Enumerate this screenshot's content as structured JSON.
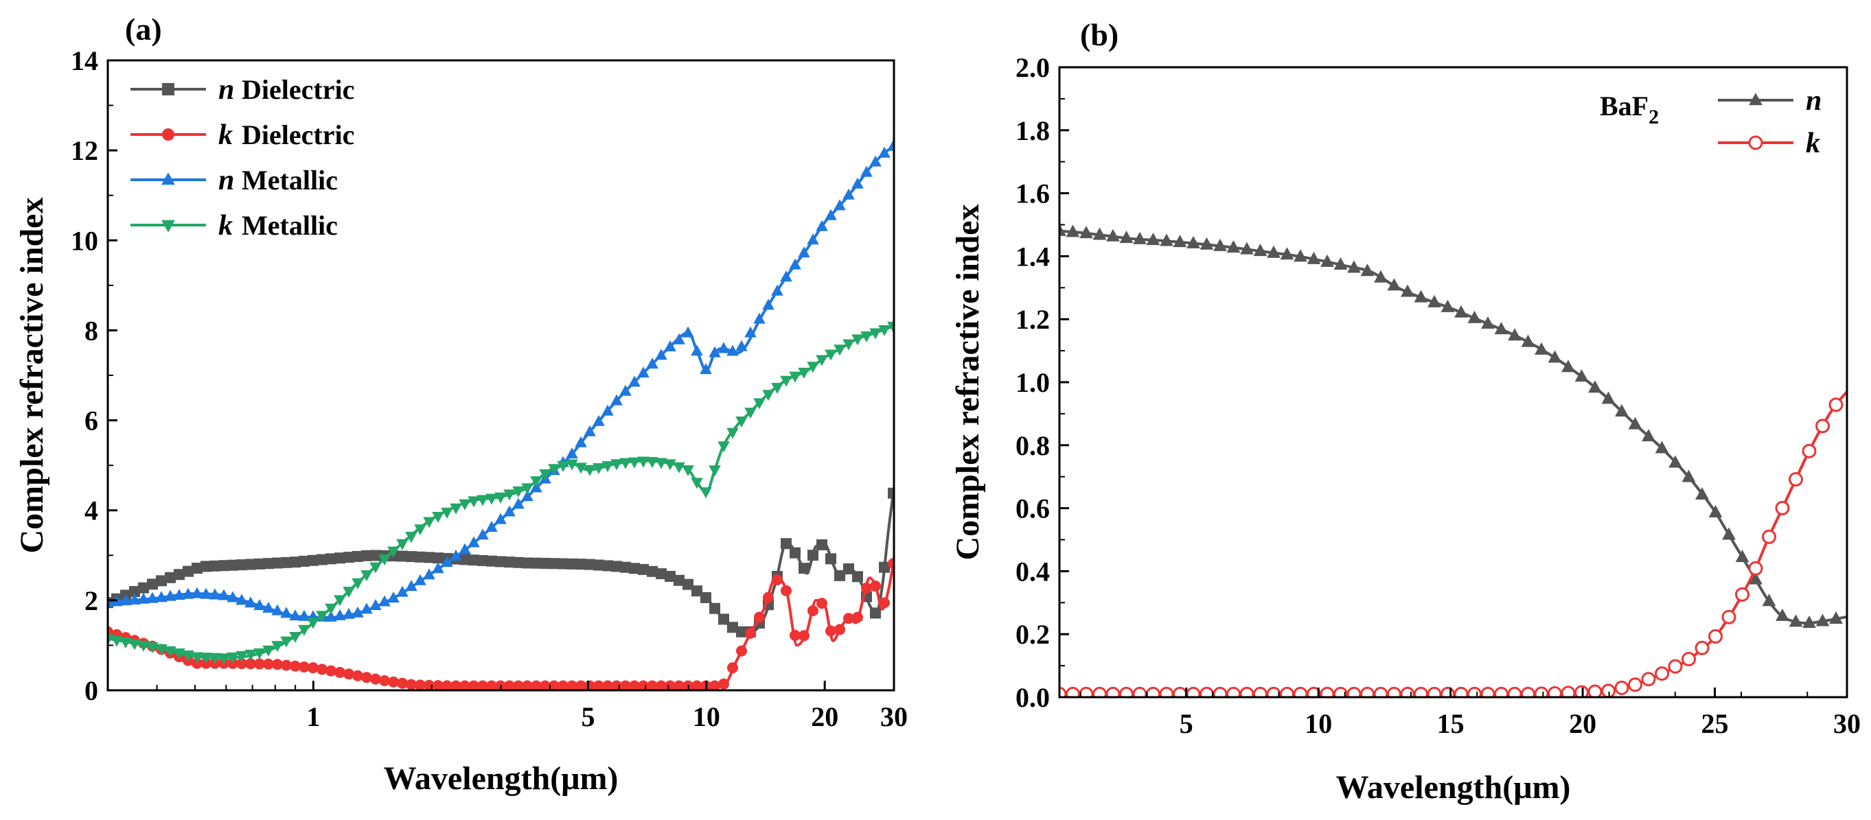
{
  "chart_data": [
    {
      "type": "line",
      "panel_label": "(a)",
      "xlabel": "Wavelength(μm)",
      "ylabel": "Complex refractive index",
      "xscale": "log",
      "xlim": [
        0.3,
        30
      ],
      "ylim": [
        0,
        14
      ],
      "xticks": [
        {
          "value": 1,
          "label": "1"
        },
        {
          "value": 5,
          "label": "5"
        },
        {
          "value": 10,
          "label": "10"
        },
        {
          "value": 20,
          "label": "20"
        },
        {
          "value": 30,
          "label": "30"
        }
      ],
      "yticks": [
        {
          "value": 0,
          "label": "0"
        },
        {
          "value": 2,
          "label": "2"
        },
        {
          "value": 4,
          "label": "4"
        },
        {
          "value": 6,
          "label": "6"
        },
        {
          "value": 8,
          "label": "8"
        },
        {
          "value": 10,
          "label": "10"
        },
        {
          "value": 12,
          "label": "12"
        },
        {
          "value": 14,
          "label": "14"
        }
      ],
      "legend_position": "top-left",
      "series": [
        {
          "symbol": "n",
          "name": "Dielectric",
          "color": "#555555",
          "marker": "square",
          "points": [
            [
              0.3,
              1.95
            ],
            [
              0.4,
              2.4
            ],
            [
              0.52,
              2.75
            ],
            [
              0.7,
              2.8
            ],
            [
              0.9,
              2.85
            ],
            [
              1.1,
              2.92
            ],
            [
              1.4,
              3.0
            ],
            [
              1.7,
              2.98
            ],
            [
              2.0,
              2.95
            ],
            [
              2.5,
              2.9
            ],
            [
              3.0,
              2.86
            ],
            [
              3.5,
              2.83
            ],
            [
              4.0,
              2.82
            ],
            [
              5.0,
              2.8
            ],
            [
              6.0,
              2.75
            ],
            [
              7.0,
              2.68
            ],
            [
              8.0,
              2.55
            ],
            [
              9.0,
              2.35
            ],
            [
              10.0,
              2.05
            ],
            [
              11.0,
              1.6
            ],
            [
              12.0,
              1.3
            ],
            [
              13.0,
              1.3
            ],
            [
              14.0,
              1.6
            ],
            [
              15.0,
              2.4
            ],
            [
              16.0,
              3.3
            ],
            [
              17.0,
              3.0
            ],
            [
              18.0,
              2.6
            ],
            [
              19.0,
              3.2
            ],
            [
              20.0,
              3.25
            ],
            [
              21.0,
              2.8
            ],
            [
              22.0,
              2.5
            ],
            [
              23.0,
              2.7
            ],
            [
              24.0,
              2.6
            ],
            [
              25.0,
              2.3
            ],
            [
              26.0,
              1.9
            ],
            [
              27.0,
              1.7
            ],
            [
              28.0,
              2.3
            ],
            [
              29.0,
              3.5
            ],
            [
              30.0,
              4.5
            ]
          ]
        },
        {
          "symbol": "k",
          "name": "Dielectric",
          "color": "#ee3333",
          "marker": "circle",
          "points": [
            [
              0.3,
              1.3
            ],
            [
              0.4,
              0.95
            ],
            [
              0.5,
              0.6
            ],
            [
              0.6,
              0.6
            ],
            [
              0.8,
              0.58
            ],
            [
              1.0,
              0.5
            ],
            [
              1.2,
              0.38
            ],
            [
              1.5,
              0.22
            ],
            [
              1.8,
              0.12
            ],
            [
              2.2,
              0.1
            ],
            [
              3.0,
              0.1
            ],
            [
              4.0,
              0.1
            ],
            [
              5.0,
              0.1
            ],
            [
              6.0,
              0.1
            ],
            [
              7.0,
              0.1
            ],
            [
              8.0,
              0.1
            ],
            [
              9.0,
              0.1
            ],
            [
              10.0,
              0.1
            ],
            [
              11.0,
              0.1
            ],
            [
              12.0,
              0.7
            ],
            [
              13.0,
              1.3
            ],
            [
              14.0,
              1.8
            ],
            [
              15.0,
              2.5
            ],
            [
              16.0,
              2.2
            ],
            [
              17.0,
              1.0
            ],
            [
              18.0,
              1.3
            ],
            [
              19.0,
              2.0
            ],
            [
              20.0,
              1.9
            ],
            [
              21.0,
              1.1
            ],
            [
              22.0,
              1.4
            ],
            [
              23.0,
              1.6
            ],
            [
              24.0,
              1.5
            ],
            [
              25.0,
              2.0
            ],
            [
              26.0,
              2.5
            ],
            [
              27.0,
              2.3
            ],
            [
              28.0,
              1.8
            ],
            [
              29.0,
              2.2
            ],
            [
              30.0,
              2.9
            ]
          ]
        },
        {
          "symbol": "n",
          "name": "Metallic",
          "color": "#1f77e0",
          "marker": "triangle-up",
          "points": [
            [
              0.3,
              1.95
            ],
            [
              0.4,
              2.05
            ],
            [
              0.5,
              2.15
            ],
            [
              0.6,
              2.1
            ],
            [
              0.75,
              1.85
            ],
            [
              0.9,
              1.65
            ],
            [
              1.1,
              1.62
            ],
            [
              1.3,
              1.72
            ],
            [
              1.6,
              2.05
            ],
            [
              2.0,
              2.6
            ],
            [
              2.5,
              3.2
            ],
            [
              3.0,
              3.8
            ],
            [
              3.5,
              4.3
            ],
            [
              4.0,
              4.8
            ],
            [
              4.5,
              5.2
            ],
            [
              5.0,
              5.7
            ],
            [
              6.0,
              6.5
            ],
            [
              7.0,
              7.1
            ],
            [
              8.0,
              7.6
            ],
            [
              9.0,
              7.95
            ],
            [
              9.5,
              7.5
            ],
            [
              10.0,
              7.1
            ],
            [
              10.5,
              7.5
            ],
            [
              11.0,
              7.6
            ],
            [
              12.0,
              7.5
            ],
            [
              14.0,
              8.4
            ],
            [
              16.0,
              9.2
            ],
            [
              18.0,
              9.8
            ],
            [
              20.0,
              10.4
            ],
            [
              22.0,
              10.8
            ],
            [
              24.0,
              11.2
            ],
            [
              26.0,
              11.6
            ],
            [
              28.0,
              11.9
            ],
            [
              30.0,
              12.1
            ]
          ]
        },
        {
          "symbol": "k",
          "name": "Metallic",
          "color": "#22a866",
          "marker": "triangle-down",
          "points": [
            [
              0.3,
              1.15
            ],
            [
              0.4,
              0.95
            ],
            [
              0.5,
              0.75
            ],
            [
              0.6,
              0.72
            ],
            [
              0.75,
              0.85
            ],
            [
              0.9,
              1.2
            ],
            [
              1.1,
              1.8
            ],
            [
              1.3,
              2.4
            ],
            [
              1.6,
              3.1
            ],
            [
              2.0,
              3.8
            ],
            [
              2.5,
              4.2
            ],
            [
              3.0,
              4.3
            ],
            [
              3.5,
              4.5
            ],
            [
              4.0,
              4.9
            ],
            [
              4.5,
              5.05
            ],
            [
              5.0,
              4.9
            ],
            [
              6.0,
              5.05
            ],
            [
              7.0,
              5.1
            ],
            [
              8.0,
              5.05
            ],
            [
              9.0,
              4.9
            ],
            [
              9.5,
              4.6
            ],
            [
              10.0,
              4.4
            ],
            [
              10.5,
              4.9
            ],
            [
              11.0,
              5.4
            ],
            [
              12.0,
              5.9
            ],
            [
              13.0,
              6.2
            ],
            [
              14.0,
              6.5
            ],
            [
              16.0,
              6.9
            ],
            [
              18.0,
              7.1
            ],
            [
              20.0,
              7.4
            ],
            [
              22.0,
              7.6
            ],
            [
              24.0,
              7.8
            ],
            [
              26.0,
              7.9
            ],
            [
              28.0,
              8.0
            ],
            [
              30.0,
              8.1
            ]
          ]
        }
      ]
    },
    {
      "type": "line",
      "panel_label": "(b)",
      "xlabel": "Wavelength(μm)",
      "ylabel": "Complex refractive index",
      "xscale": "linear",
      "xlim": [
        0.2,
        30
      ],
      "ylim": [
        0,
        2.0
      ],
      "xticks": [
        {
          "value": 5,
          "label": "5"
        },
        {
          "value": 10,
          "label": "10"
        },
        {
          "value": 15,
          "label": "15"
        },
        {
          "value": 20,
          "label": "20"
        },
        {
          "value": 25,
          "label": "25"
        },
        {
          "value": 30,
          "label": "30"
        }
      ],
      "yticks": [
        {
          "value": 0,
          "label": "0.0"
        },
        {
          "value": 0.2,
          "label": "0.2"
        },
        {
          "value": 0.4,
          "label": "0.4"
        },
        {
          "value": 0.6,
          "label": "0.6"
        },
        {
          "value": 0.8,
          "label": "0.8"
        },
        {
          "value": 1.0,
          "label": "1.0"
        },
        {
          "value": 1.2,
          "label": "1.2"
        },
        {
          "value": 1.4,
          "label": "1.4"
        },
        {
          "value": 1.6,
          "label": "1.6"
        },
        {
          "value": 1.8,
          "label": "1.8"
        },
        {
          "value": 2.0,
          "label": "2.0"
        }
      ],
      "annotation": {
        "text": "BaF",
        "subscript": "2"
      },
      "legend_position": "top-right",
      "series": [
        {
          "symbol": "n",
          "name": "",
          "color": "#555555",
          "marker": "triangle-up",
          "points": [
            [
              0.2,
              1.48
            ],
            [
              1,
              1.475
            ],
            [
              2,
              1.465
            ],
            [
              3,
              1.455
            ],
            [
              4,
              1.45
            ],
            [
              5,
              1.443
            ],
            [
              6,
              1.435
            ],
            [
              7,
              1.425
            ],
            [
              8,
              1.414
            ],
            [
              9,
              1.403
            ],
            [
              10,
              1.388
            ],
            [
              11,
              1.37
            ],
            [
              12,
              1.35
            ],
            [
              13,
              1.3
            ],
            [
              14,
              1.265
            ],
            [
              15,
              1.235
            ],
            [
              16,
              1.2
            ],
            [
              17,
              1.165
            ],
            [
              18,
              1.125
            ],
            [
              19,
              1.075
            ],
            [
              20,
              1.015
            ],
            [
              21,
              0.945
            ],
            [
              22,
              0.865
            ],
            [
              23,
              0.79
            ],
            [
              24,
              0.7
            ],
            [
              25,
              0.59
            ],
            [
              25.5,
              0.52
            ],
            [
              26,
              0.45
            ],
            [
              26.5,
              0.38
            ],
            [
              27,
              0.31
            ],
            [
              27.5,
              0.26
            ],
            [
              28,
              0.24
            ],
            [
              28.5,
              0.235
            ],
            [
              29,
              0.24
            ],
            [
              30,
              0.255
            ]
          ]
        },
        {
          "symbol": "k",
          "name": "",
          "color": "#ee3333",
          "marker": "open-circle",
          "points": [
            [
              0.2,
              0.01
            ],
            [
              1,
              0.01
            ],
            [
              2,
              0.01
            ],
            [
              3,
              0.01
            ],
            [
              4,
              0.01
            ],
            [
              5,
              0.01
            ],
            [
              6,
              0.01
            ],
            [
              7,
              0.01
            ],
            [
              8,
              0.01
            ],
            [
              9,
              0.01
            ],
            [
              10,
              0.01
            ],
            [
              11,
              0.01
            ],
            [
              12,
              0.01
            ],
            [
              13,
              0.01
            ],
            [
              14,
              0.01
            ],
            [
              15,
              0.01
            ],
            [
              16,
              0.01
            ],
            [
              17,
              0.01
            ],
            [
              18,
              0.01
            ],
            [
              19,
              0.012
            ],
            [
              20,
              0.015
            ],
            [
              21,
              0.02
            ],
            [
              22,
              0.04
            ],
            [
              23,
              0.075
            ],
            [
              24,
              0.12
            ],
            [
              25,
              0.19
            ],
            [
              25.5,
              0.25
            ],
            [
              26,
              0.32
            ],
            [
              26.5,
              0.4
            ],
            [
              27,
              0.5
            ],
            [
              27.5,
              0.59
            ],
            [
              28,
              0.68
            ],
            [
              28.5,
              0.77
            ],
            [
              29,
              0.85
            ],
            [
              29.5,
              0.92
            ],
            [
              30,
              0.97
            ]
          ]
        }
      ]
    }
  ]
}
